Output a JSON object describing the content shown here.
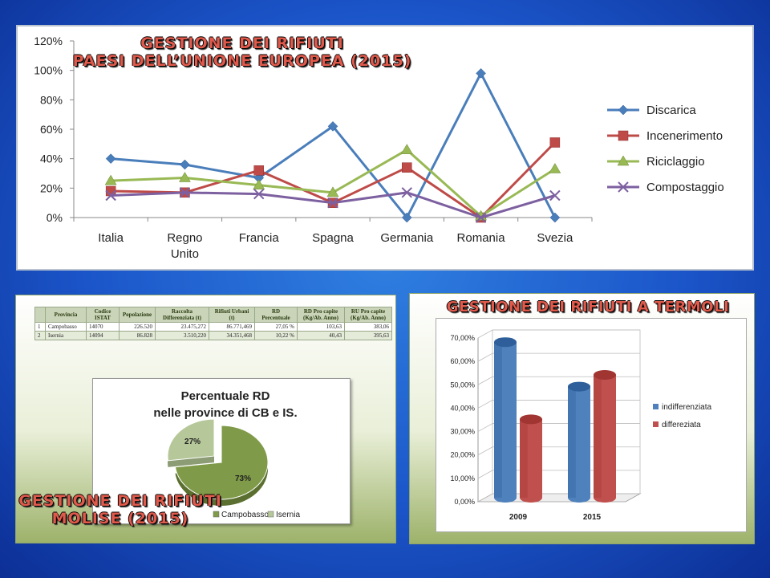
{
  "panel_eu": {
    "title_line1": "GESTIONE DEI RIFIUTI",
    "title_line2": "PAESI DELL’UNIONE EUROPEA (2015)"
  },
  "panel_molise": {
    "title_line1": "GESTIONE DEI RIFIUTI",
    "title_line2": "MOLISE (2015)",
    "table": {
      "headers": [
        "",
        "Provincia",
        "Codice ISTAT",
        "Popolazione",
        "Raccolta Differenziata (t)",
        "Rifiuti Urbani (t)",
        "RD Percentuale",
        "RD Pro capite (Kg/Ab. Anno)",
        "RU Pro capite (Kg/Ab. Anno)"
      ],
      "rows": [
        [
          "1",
          "Campobasso",
          "14070",
          "226.520",
          "23.475,272",
          "86.771,469",
          "27,05 %",
          "103,63",
          "383,06"
        ],
        [
          "2",
          "Isernia",
          "14094",
          "86.828",
          "3.510,220",
          "34.351,468",
          "10,22 %",
          "40,43",
          "395,63"
        ]
      ]
    }
  },
  "panel_termoli": {
    "title": "GESTIONE DEI RIFIUTI A TERMOLI"
  },
  "chart_data": [
    {
      "type": "line",
      "categories": [
        "Italia",
        "Regno Unito",
        "Francia",
        "Spagna",
        "Germania",
        "Romania",
        "Svezia"
      ],
      "ylim": [
        0,
        120
      ],
      "yticks": [
        "0%",
        "20%",
        "40%",
        "60%",
        "80%",
        "100%",
        "120%"
      ],
      "grid": false,
      "legend_position": "right",
      "series": [
        {
          "name": "Discarica",
          "color": "#4a7ebb",
          "marker": "diamond",
          "values": [
            40,
            36,
            27,
            62,
            0,
            98,
            0
          ]
        },
        {
          "name": "Incenerimento",
          "color": "#be4b48",
          "marker": "square",
          "values": [
            18,
            17,
            32,
            10,
            34,
            0,
            51
          ]
        },
        {
          "name": "Riciclaggio",
          "color": "#98b954",
          "marker": "triangle",
          "values": [
            25,
            27,
            22,
            17,
            46,
            1,
            33
          ]
        },
        {
          "name": "Compostaggio",
          "color": "#7d60a0",
          "marker": "x",
          "values": [
            15,
            17,
            16,
            10,
            17,
            0,
            15
          ]
        }
      ]
    },
    {
      "type": "pie",
      "title": "Percentuale RD nelle province di CB e IS.",
      "legend_position": "bottom",
      "slices": [
        {
          "label": "Campobasso",
          "value": 73,
          "display": "73%",
          "color": "#7f9a48"
        },
        {
          "label": "Isernia",
          "value": 27,
          "display": "27%",
          "color": "#b6c79a"
        }
      ]
    },
    {
      "type": "bar",
      "categories": [
        "2009",
        "2015"
      ],
      "ylim": [
        0,
        70
      ],
      "yticks": [
        "0,00%",
        "10,00%",
        "20,00%",
        "30,00%",
        "40,00%",
        "50,00%",
        "60,00%",
        "70,00%"
      ],
      "grid": true,
      "legend_position": "right",
      "series": [
        {
          "name": "indifferenziata",
          "color": "#4f81bd",
          "values": [
            66.5,
            47.5
          ]
        },
        {
          "name": "differeziata",
          "color": "#c0504d",
          "values": [
            33.5,
            52.5
          ]
        }
      ]
    }
  ]
}
